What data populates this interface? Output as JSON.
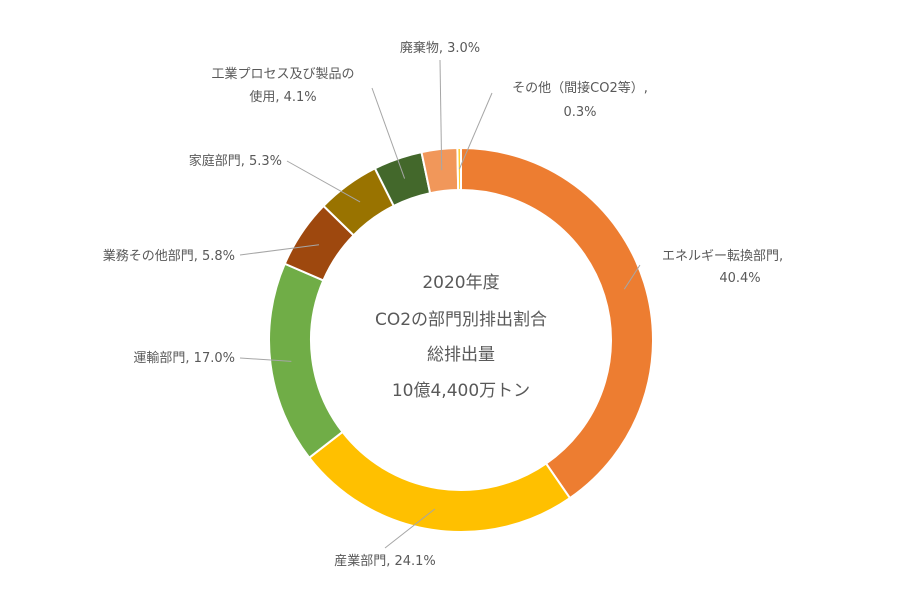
{
  "chart_data": {
    "type": "pie",
    "donut": true,
    "center_text": [
      "2020年度",
      "CO2の部門別排出割合",
      "総排出量",
      "10億4,400万トン"
    ],
    "unit": "%",
    "slices": [
      {
        "name": "エネルギー転換部門",
        "value": 40.4,
        "label": [
          "エネルギー転換部門,",
          "40.4%"
        ],
        "color": "#ED7D31"
      },
      {
        "name": "産業部門",
        "value": 24.1,
        "label": [
          "産業部門, 24.1%"
        ],
        "color": "#FFC000"
      },
      {
        "name": "運輸部門",
        "value": 17.0,
        "label": [
          "運輸部門, 17.0%"
        ],
        "color": "#70AD47"
      },
      {
        "name": "業務その他部門",
        "value": 5.8,
        "label": [
          "業務その他部門, 5.8%"
        ],
        "color": "#9E480E"
      },
      {
        "name": "家庭部門",
        "value": 5.3,
        "label": [
          "家庭部門, 5.3%"
        ],
        "color": "#997300"
      },
      {
        "name": "工業プロセス及び製品の使用",
        "value": 4.1,
        "label": [
          "工業プロセス及び製品の",
          "使用, 4.1%"
        ],
        "color": "#43682B"
      },
      {
        "name": "廃棄物",
        "value": 3.0,
        "label": [
          "廃棄物, 3.0%"
        ],
        "color": "#F1975A"
      },
      {
        "name": "その他（間接CO2等）",
        "value": 0.3,
        "label": [
          "その他（間接CO2等）,",
          "0.3%"
        ],
        "color": "#FFCD33"
      }
    ]
  }
}
